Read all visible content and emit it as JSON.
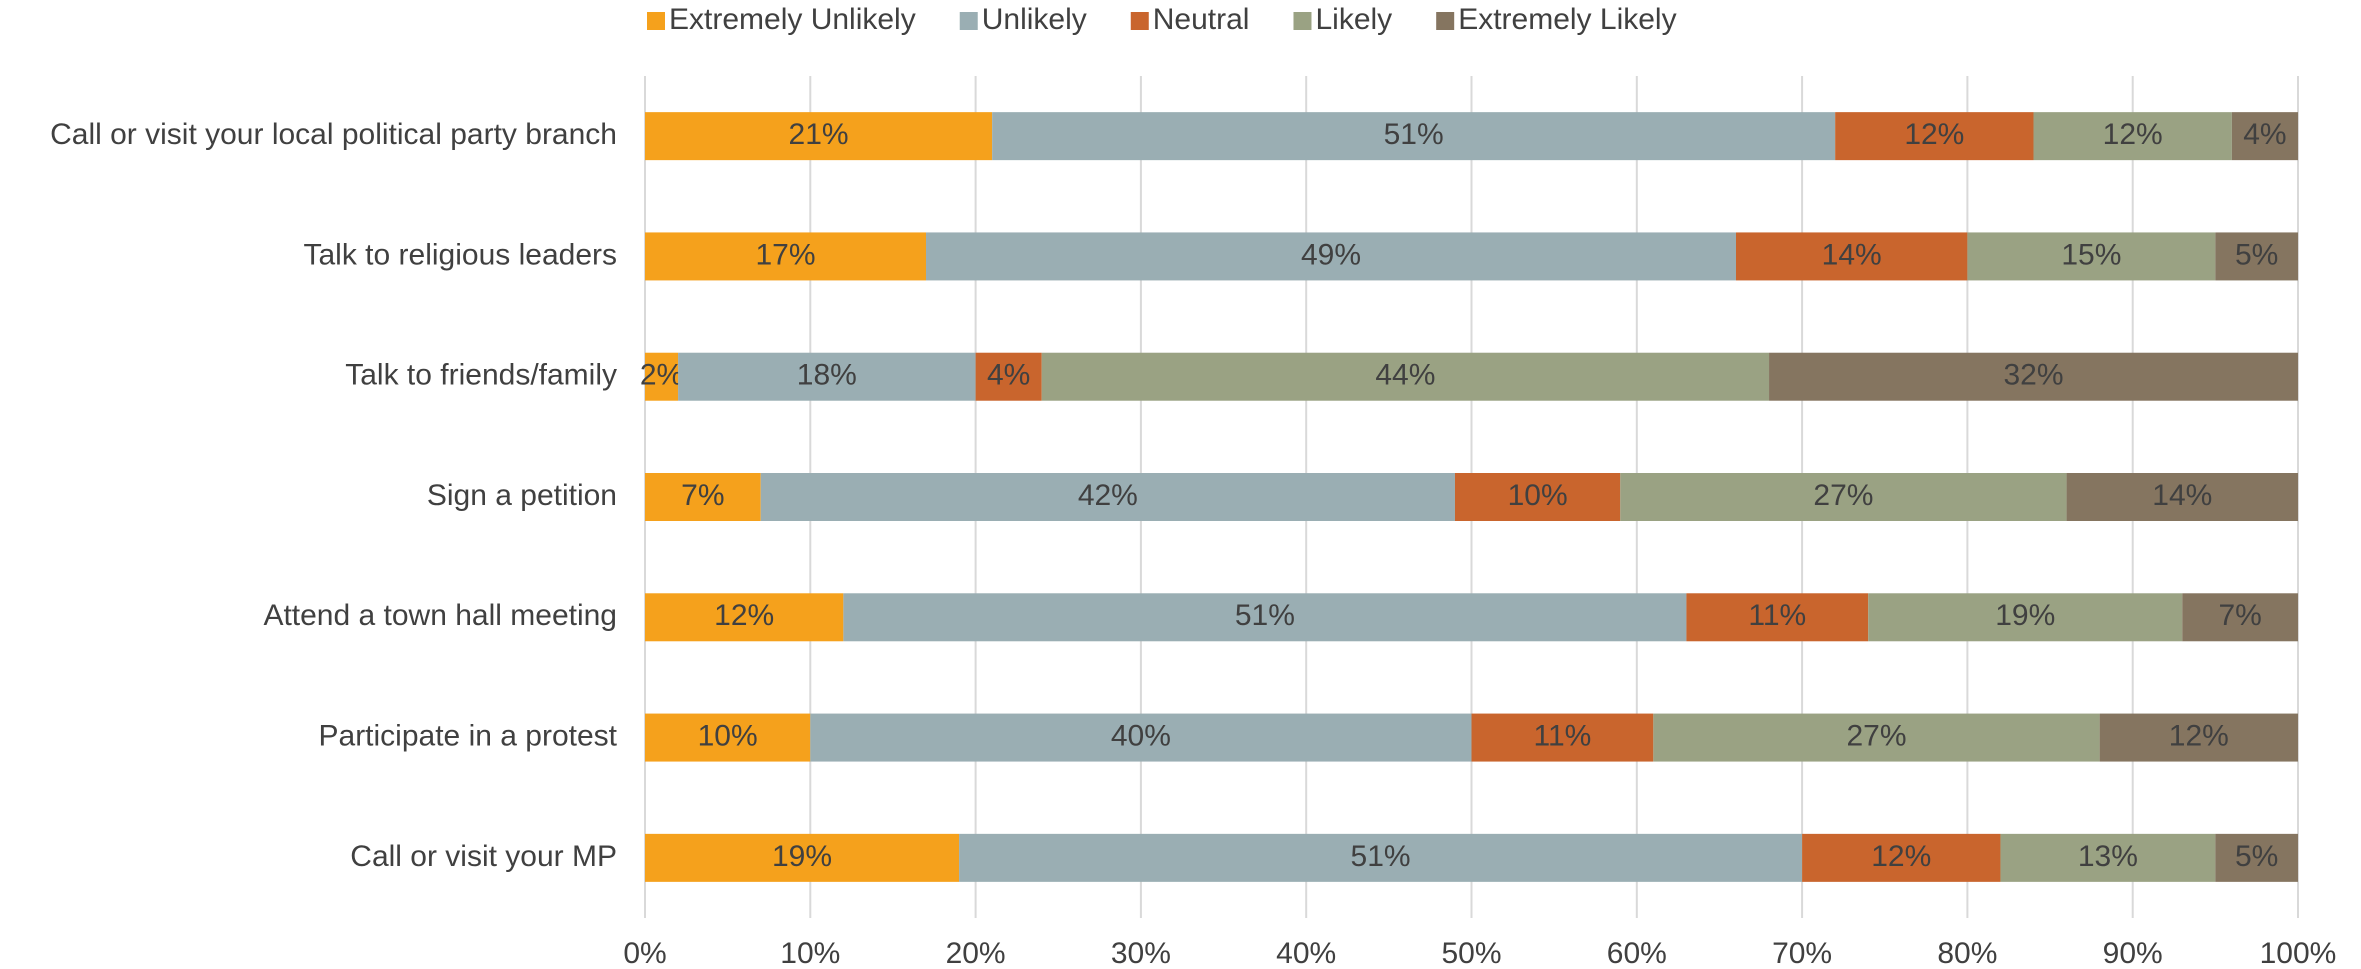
{
  "chart_data": {
    "type": "stacked-bar-horizontal",
    "categories": [
      "Call or visit your local political party branch",
      "Talk to religious leaders",
      "Talk to friends/family",
      "Sign a petition",
      "Attend a town hall meeting",
      "Participate in a protest",
      "Call or visit your MP"
    ],
    "series": [
      {
        "name": "Extremely Unlikely",
        "color": "#f5a11c",
        "values": [
          21,
          17,
          2,
          7,
          12,
          10,
          19
        ],
        "value_labels": [
          "21%",
          "17%",
          "2%",
          "7%",
          "12%",
          "10%",
          "19%"
        ]
      },
      {
        "name": "Unlikely",
        "color": "#9aaeb3",
        "values": [
          51,
          49,
          18,
          42,
          51,
          40,
          51
        ],
        "value_labels": [
          "51%",
          "49%",
          "18%",
          "42%",
          "51%",
          "40%",
          "51%"
        ]
      },
      {
        "name": "Neutral",
        "color": "#c9652d",
        "values": [
          12,
          14,
          4,
          10,
          11,
          11,
          12
        ],
        "value_labels": [
          "12%",
          "14%",
          "4%",
          "10%",
          "11%",
          "11%",
          "12%"
        ]
      },
      {
        "name": "Likely",
        "color": "#9aa283",
        "values": [
          12,
          15,
          44,
          27,
          19,
          27,
          13
        ],
        "value_labels": [
          "12%",
          "15%",
          "44%",
          "27%",
          "19%",
          "27%",
          "13%"
        ]
      },
      {
        "name": "Extremely Likely",
        "color": "#857560",
        "values": [
          4,
          5,
          32,
          14,
          7,
          12,
          5
        ],
        "value_labels": [
          "4%",
          "5%",
          "32%",
          "14%",
          "7%",
          "12%",
          "5%"
        ]
      }
    ],
    "xlim": [
      0,
      100
    ],
    "xticks": [
      {
        "value": 0,
        "label": "0%"
      },
      {
        "value": 10,
        "label": "10%"
      },
      {
        "value": 20,
        "label": "20%"
      },
      {
        "value": 30,
        "label": "30%"
      },
      {
        "value": 40,
        "label": "40%"
      },
      {
        "value": 50,
        "label": "50%"
      },
      {
        "value": 60,
        "label": "60%"
      },
      {
        "value": 70,
        "label": "70%"
      },
      {
        "value": 80,
        "label": "80%"
      },
      {
        "value": 90,
        "label": "90%"
      },
      {
        "value": 100,
        "label": "100%"
      }
    ],
    "grid": true,
    "legend": "top"
  }
}
